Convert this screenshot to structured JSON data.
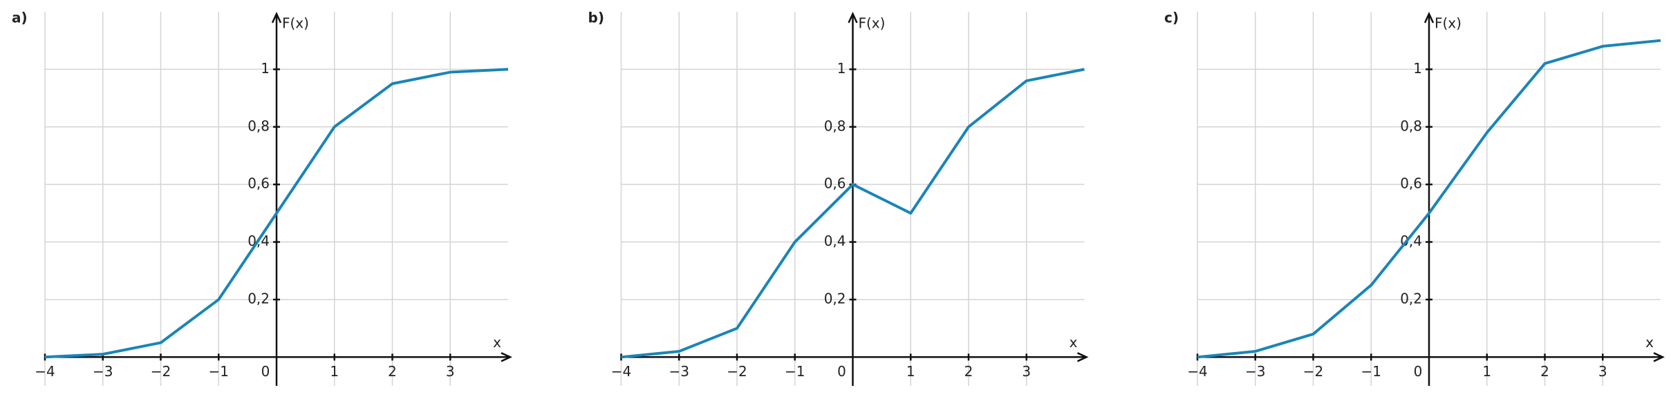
{
  "chart_data": [
    {
      "type": "line",
      "label": "a)",
      "ylabel": "F(x)",
      "xlabel": "x",
      "x": [
        -4,
        -3,
        -2,
        -1,
        0,
        1,
        2,
        3,
        4
      ],
      "series": [
        {
          "color": "#1a85b8",
          "values": [
            0,
            0.01,
            0.05,
            0.2,
            0.5,
            0.8,
            0.95,
            0.99,
            1.0
          ]
        }
      ],
      "xlim": [
        -4,
        4
      ],
      "ylim": [
        -0.1,
        1.2
      ],
      "xticks": [
        {
          "value": -4,
          "label": "−4"
        },
        {
          "value": -3,
          "label": "−3"
        },
        {
          "value": -2,
          "label": "−2"
        },
        {
          "value": -1,
          "label": "−1"
        },
        0,
        1,
        2,
        3
      ],
      "yticks": [
        {
          "value": 0.2,
          "label": "0,2"
        },
        {
          "value": 0.4,
          "label": "0,4"
        },
        {
          "value": 0.6,
          "label": "0,6"
        },
        {
          "value": 0.8,
          "label": "0,8"
        },
        1
      ],
      "grid": true
    },
    {
      "type": "line",
      "label": "b)",
      "ylabel": "F(x)",
      "xlabel": "x",
      "x": [
        -4,
        -3,
        -2,
        -1,
        0,
        1,
        2,
        3,
        4
      ],
      "series": [
        {
          "color": "#1a85b8",
          "values": [
            0,
            0.02,
            0.1,
            0.4,
            0.6,
            0.5,
            0.8,
            0.96,
            1.0
          ]
        }
      ],
      "xlim": [
        -4,
        4
      ],
      "ylim": [
        -0.1,
        1.2
      ],
      "xticks": [
        {
          "value": -4,
          "label": "−4"
        },
        {
          "value": -3,
          "label": "−3"
        },
        {
          "value": -2,
          "label": "−2"
        },
        {
          "value": -1,
          "label": "−1"
        },
        0,
        1,
        2,
        3
      ],
      "yticks": [
        {
          "value": 0.2,
          "label": "0,2"
        },
        {
          "value": 0.4,
          "label": "0,4"
        },
        {
          "value": 0.6,
          "label": "0,6"
        },
        {
          "value": 0.8,
          "label": "0,8"
        },
        1
      ],
      "grid": true
    },
    {
      "type": "line",
      "label": "c)",
      "ylabel": "F(x)",
      "xlabel": "x",
      "x": [
        -4,
        -3,
        -2,
        -1,
        0,
        1,
        2,
        3,
        4
      ],
      "series": [
        {
          "color": "#1a85b8",
          "values": [
            0,
            0.02,
            0.08,
            0.25,
            0.5,
            0.78,
            1.02,
            1.08,
            1.1
          ]
        }
      ],
      "xlim": [
        -4,
        4
      ],
      "ylim": [
        -0.1,
        1.2
      ],
      "xticks": [
        {
          "value": -4,
          "label": "−4"
        },
        {
          "value": -3,
          "label": "−3"
        },
        {
          "value": -2,
          "label": "−2"
        },
        {
          "value": -1,
          "label": "−1"
        },
        0,
        1,
        2,
        3
      ],
      "yticks": [
        {
          "value": 0.2,
          "label": "0,2"
        },
        {
          "value": 0.4,
          "label": "0,4"
        },
        {
          "value": 0.6,
          "label": "0,6"
        },
        {
          "value": 0.8,
          "label": "0,8"
        },
        1
      ],
      "grid": true
    }
  ]
}
